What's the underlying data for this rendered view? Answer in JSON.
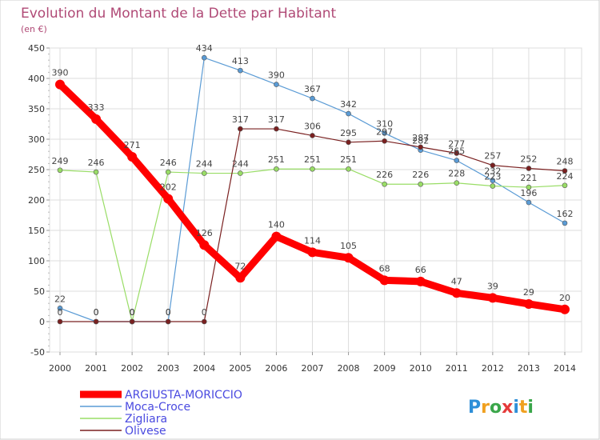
{
  "chart_data": {
    "type": "line",
    "title": "Evolution du Montant de la Dette par Habitant",
    "subtitle": "(en €)",
    "categories": [
      "2000",
      "2001",
      "2002",
      "2003",
      "2004",
      "2005",
      "2006",
      "2007",
      "2008",
      "2009",
      "2010",
      "2011",
      "2012",
      "2013",
      "2014"
    ],
    "ylim": [
      -50,
      450
    ],
    "yticks": [
      -50,
      0,
      50,
      100,
      150,
      200,
      250,
      300,
      350,
      400,
      450
    ],
    "grid": true,
    "legend_position": "bottom-left",
    "series": [
      {
        "name": "ARGIUSTA-MORICCIO",
        "color": "#ff0000",
        "values": [
          390,
          333,
          271,
          202,
          126,
          72,
          140,
          114,
          105,
          68,
          66,
          47,
          39,
          29,
          20
        ]
      },
      {
        "name": "Moca-Croce",
        "color": "#5a9bd5",
        "values": [
          22,
          0,
          0,
          0,
          434,
          413,
          390,
          367,
          342,
          310,
          282,
          265,
          232,
          196,
          162
        ]
      },
      {
        "name": "Zigliara",
        "color": "#99dd66",
        "values": [
          249,
          246,
          0,
          246,
          244,
          244,
          251,
          251,
          251,
          226,
          226,
          228,
          223,
          221,
          224
        ]
      },
      {
        "name": "Olivese",
        "color": "#7a2020",
        "values": [
          0,
          0,
          0,
          0,
          0,
          317,
          317,
          306,
          295,
          297,
          287,
          277,
          257,
          252,
          248
        ]
      }
    ]
  },
  "brand": {
    "letters": [
      "P",
      "r",
      "o",
      "x",
      "i",
      "t",
      "i"
    ],
    "colors": [
      "#2e8fd8",
      "#f0a020",
      "#3aa64a",
      "#e53a3a",
      "#2e8fd8",
      "#f0a020",
      "#3aa64a"
    ]
  }
}
